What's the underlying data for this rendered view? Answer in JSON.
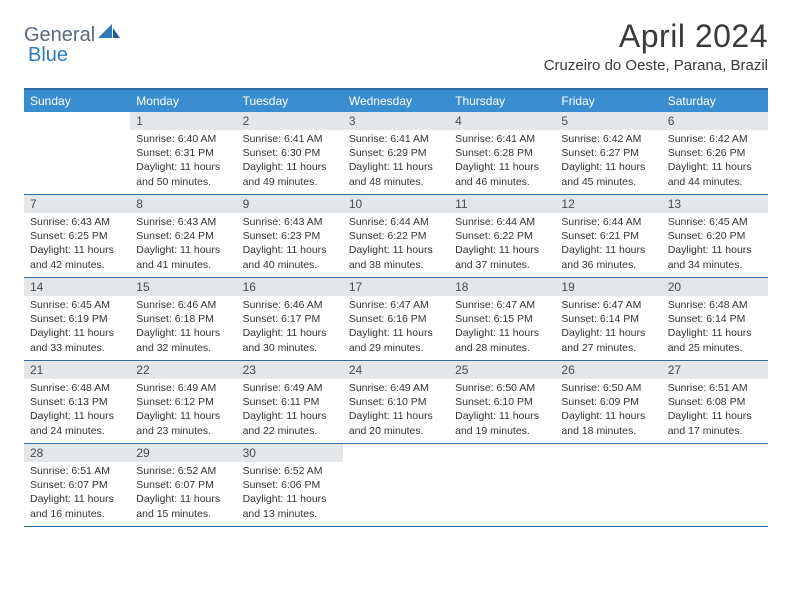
{
  "logo": {
    "general": "General",
    "blue": "Blue"
  },
  "title": "April 2024",
  "location": "Cruzeiro do Oeste, Parana, Brazil",
  "colors": {
    "header_bar": "#3a8dd0",
    "border": "#2f6ea8",
    "daynum_bg": "#e4e7e9",
    "text": "#333333",
    "logo_gray": "#5a6a7a",
    "logo_blue": "#2f7ab8"
  },
  "day_headers": [
    "Sunday",
    "Monday",
    "Tuesday",
    "Wednesday",
    "Thursday",
    "Friday",
    "Saturday"
  ],
  "weeks": [
    [
      {
        "n": "",
        "sunrise": "",
        "sunset": "",
        "daylight": ""
      },
      {
        "n": "1",
        "sunrise": "Sunrise: 6:40 AM",
        "sunset": "Sunset: 6:31 PM",
        "daylight": "Daylight: 11 hours and 50 minutes."
      },
      {
        "n": "2",
        "sunrise": "Sunrise: 6:41 AM",
        "sunset": "Sunset: 6:30 PM",
        "daylight": "Daylight: 11 hours and 49 minutes."
      },
      {
        "n": "3",
        "sunrise": "Sunrise: 6:41 AM",
        "sunset": "Sunset: 6:29 PM",
        "daylight": "Daylight: 11 hours and 48 minutes."
      },
      {
        "n": "4",
        "sunrise": "Sunrise: 6:41 AM",
        "sunset": "Sunset: 6:28 PM",
        "daylight": "Daylight: 11 hours and 46 minutes."
      },
      {
        "n": "5",
        "sunrise": "Sunrise: 6:42 AM",
        "sunset": "Sunset: 6:27 PM",
        "daylight": "Daylight: 11 hours and 45 minutes."
      },
      {
        "n": "6",
        "sunrise": "Sunrise: 6:42 AM",
        "sunset": "Sunset: 6:26 PM",
        "daylight": "Daylight: 11 hours and 44 minutes."
      }
    ],
    [
      {
        "n": "7",
        "sunrise": "Sunrise: 6:43 AM",
        "sunset": "Sunset: 6:25 PM",
        "daylight": "Daylight: 11 hours and 42 minutes."
      },
      {
        "n": "8",
        "sunrise": "Sunrise: 6:43 AM",
        "sunset": "Sunset: 6:24 PM",
        "daylight": "Daylight: 11 hours and 41 minutes."
      },
      {
        "n": "9",
        "sunrise": "Sunrise: 6:43 AM",
        "sunset": "Sunset: 6:23 PM",
        "daylight": "Daylight: 11 hours and 40 minutes."
      },
      {
        "n": "10",
        "sunrise": "Sunrise: 6:44 AM",
        "sunset": "Sunset: 6:22 PM",
        "daylight": "Daylight: 11 hours and 38 minutes."
      },
      {
        "n": "11",
        "sunrise": "Sunrise: 6:44 AM",
        "sunset": "Sunset: 6:22 PM",
        "daylight": "Daylight: 11 hours and 37 minutes."
      },
      {
        "n": "12",
        "sunrise": "Sunrise: 6:44 AM",
        "sunset": "Sunset: 6:21 PM",
        "daylight": "Daylight: 11 hours and 36 minutes."
      },
      {
        "n": "13",
        "sunrise": "Sunrise: 6:45 AM",
        "sunset": "Sunset: 6:20 PM",
        "daylight": "Daylight: 11 hours and 34 minutes."
      }
    ],
    [
      {
        "n": "14",
        "sunrise": "Sunrise: 6:45 AM",
        "sunset": "Sunset: 6:19 PM",
        "daylight": "Daylight: 11 hours and 33 minutes."
      },
      {
        "n": "15",
        "sunrise": "Sunrise: 6:46 AM",
        "sunset": "Sunset: 6:18 PM",
        "daylight": "Daylight: 11 hours and 32 minutes."
      },
      {
        "n": "16",
        "sunrise": "Sunrise: 6:46 AM",
        "sunset": "Sunset: 6:17 PM",
        "daylight": "Daylight: 11 hours and 30 minutes."
      },
      {
        "n": "17",
        "sunrise": "Sunrise: 6:47 AM",
        "sunset": "Sunset: 6:16 PM",
        "daylight": "Daylight: 11 hours and 29 minutes."
      },
      {
        "n": "18",
        "sunrise": "Sunrise: 6:47 AM",
        "sunset": "Sunset: 6:15 PM",
        "daylight": "Daylight: 11 hours and 28 minutes."
      },
      {
        "n": "19",
        "sunrise": "Sunrise: 6:47 AM",
        "sunset": "Sunset: 6:14 PM",
        "daylight": "Daylight: 11 hours and 27 minutes."
      },
      {
        "n": "20",
        "sunrise": "Sunrise: 6:48 AM",
        "sunset": "Sunset: 6:14 PM",
        "daylight": "Daylight: 11 hours and 25 minutes."
      }
    ],
    [
      {
        "n": "21",
        "sunrise": "Sunrise: 6:48 AM",
        "sunset": "Sunset: 6:13 PM",
        "daylight": "Daylight: 11 hours and 24 minutes."
      },
      {
        "n": "22",
        "sunrise": "Sunrise: 6:49 AM",
        "sunset": "Sunset: 6:12 PM",
        "daylight": "Daylight: 11 hours and 23 minutes."
      },
      {
        "n": "23",
        "sunrise": "Sunrise: 6:49 AM",
        "sunset": "Sunset: 6:11 PM",
        "daylight": "Daylight: 11 hours and 22 minutes."
      },
      {
        "n": "24",
        "sunrise": "Sunrise: 6:49 AM",
        "sunset": "Sunset: 6:10 PM",
        "daylight": "Daylight: 11 hours and 20 minutes."
      },
      {
        "n": "25",
        "sunrise": "Sunrise: 6:50 AM",
        "sunset": "Sunset: 6:10 PM",
        "daylight": "Daylight: 11 hours and 19 minutes."
      },
      {
        "n": "26",
        "sunrise": "Sunrise: 6:50 AM",
        "sunset": "Sunset: 6:09 PM",
        "daylight": "Daylight: 11 hours and 18 minutes."
      },
      {
        "n": "27",
        "sunrise": "Sunrise: 6:51 AM",
        "sunset": "Sunset: 6:08 PM",
        "daylight": "Daylight: 11 hours and 17 minutes."
      }
    ],
    [
      {
        "n": "28",
        "sunrise": "Sunrise: 6:51 AM",
        "sunset": "Sunset: 6:07 PM",
        "daylight": "Daylight: 11 hours and 16 minutes."
      },
      {
        "n": "29",
        "sunrise": "Sunrise: 6:52 AM",
        "sunset": "Sunset: 6:07 PM",
        "daylight": "Daylight: 11 hours and 15 minutes."
      },
      {
        "n": "30",
        "sunrise": "Sunrise: 6:52 AM",
        "sunset": "Sunset: 6:06 PM",
        "daylight": "Daylight: 11 hours and 13 minutes."
      },
      {
        "n": "",
        "sunrise": "",
        "sunset": "",
        "daylight": ""
      },
      {
        "n": "",
        "sunrise": "",
        "sunset": "",
        "daylight": ""
      },
      {
        "n": "",
        "sunrise": "",
        "sunset": "",
        "daylight": ""
      },
      {
        "n": "",
        "sunrise": "",
        "sunset": "",
        "daylight": ""
      }
    ]
  ]
}
